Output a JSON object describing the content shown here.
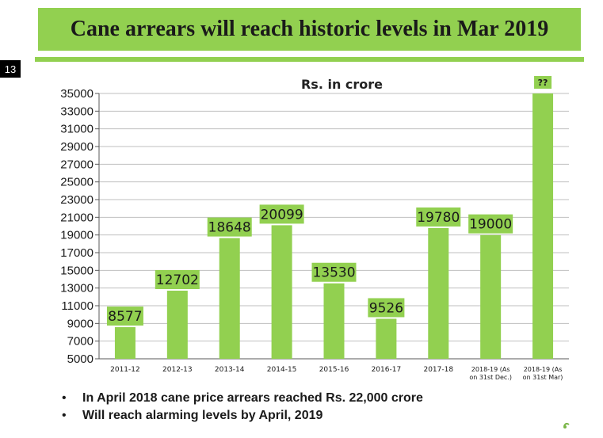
{
  "slide": {
    "title": "Cane arrears will reach historic levels in Mar 2019",
    "number": "13",
    "bullets": [
      "In April 2018 cane price arrears reached Rs. 22,000 crore",
      "Will reach alarming levels by April, 2019"
    ],
    "accent_color": "#92d050",
    "logo_text": "isma"
  },
  "chart_data": {
    "type": "bar",
    "title": "Rs. in crore",
    "categories": [
      "2011-12",
      "2012-13",
      "2013-14",
      "2014-15",
      "2015-16",
      "2016-17",
      "2017-18",
      "2018-19 (As on 31st Dec.)",
      "2018-19 (As on 31st Mar)"
    ],
    "category_lines": [
      [
        "2011-12"
      ],
      [
        "2012-13"
      ],
      [
        "2013-14"
      ],
      [
        "2014-15"
      ],
      [
        "2015-16"
      ],
      [
        "2016-17"
      ],
      [
        "2017-18"
      ],
      [
        "2018-19 (As",
        "on 31st Dec.)"
      ],
      [
        "2018-19 (As",
        "on 31st Mar)"
      ]
    ],
    "values": [
      8577,
      12702,
      18648,
      20099,
      13530,
      9526,
      19780,
      19000,
      35000
    ],
    "data_labels": [
      "8577",
      "12702",
      "18648",
      "20099",
      "13530",
      "9526",
      "19780",
      "19000",
      "??"
    ],
    "ylim": [
      5000,
      35000
    ],
    "yticks": [
      5000,
      7000,
      9000,
      11000,
      13000,
      15000,
      17000,
      19000,
      21000,
      23000,
      25000,
      27000,
      29000,
      31000,
      33000,
      35000
    ],
    "grid": true,
    "bar_color": "#92d050",
    "xlabel": "",
    "ylabel": ""
  }
}
